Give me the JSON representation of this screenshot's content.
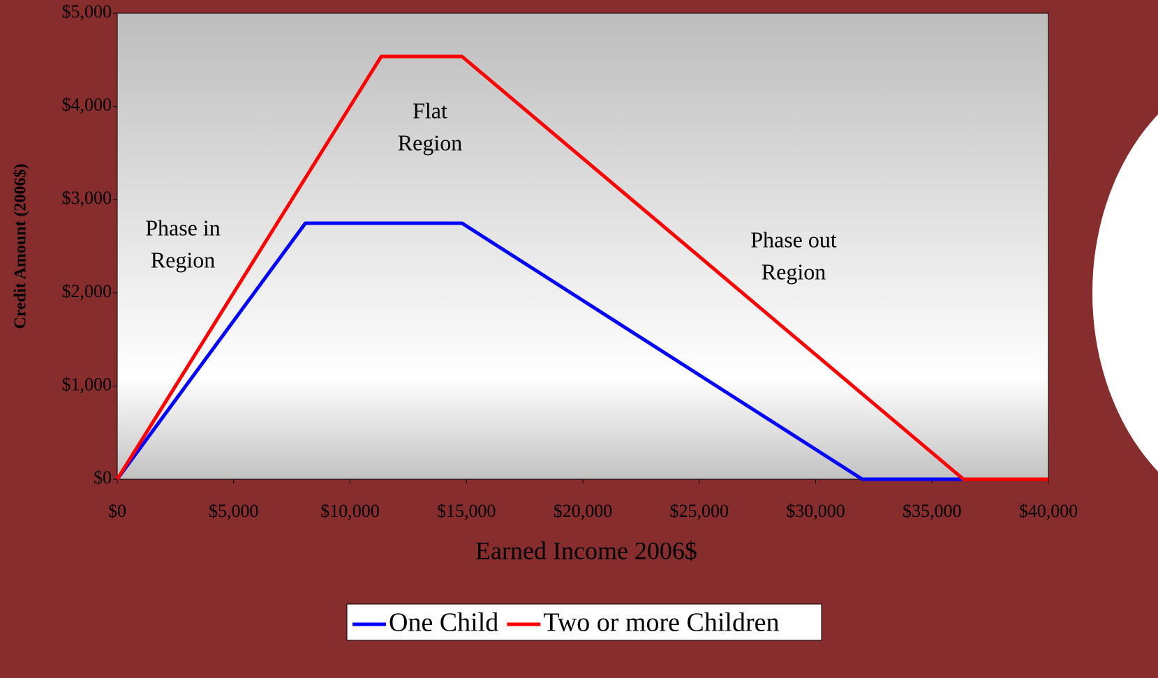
{
  "chart_data": {
    "type": "line",
    "x_label": "Earned Income 2006$",
    "y_label": "Credit Amount (2006$)",
    "series": [
      {
        "name": "One Child",
        "color": "#0000ff",
        "x": [
          0,
          8080,
          14810,
          32001,
          40000
        ],
        "values": [
          0,
          2747,
          2747,
          0,
          0
        ]
      },
      {
        "name": "Two or more Children",
        "color": "#ff0000",
        "x": [
          0,
          11340,
          14810,
          36348,
          40000
        ],
        "values": [
          0,
          4536,
          4536,
          0,
          0
        ]
      }
    ],
    "annotations": [
      [
        "Phase in",
        "Region"
      ],
      [
        "Flat",
        "Region"
      ],
      [
        "Phase out",
        "Region"
      ]
    ],
    "xlim": [
      0,
      40000
    ],
    "xticks": [
      {
        "value": 0,
        "label": "$0"
      },
      {
        "value": 5000,
        "label": "$5,000"
      },
      {
        "value": 10000,
        "label": "$10,000"
      },
      {
        "value": 15000,
        "label": "$15,000"
      },
      {
        "value": 20000,
        "label": "$20,000"
      },
      {
        "value": 25000,
        "label": "$25,000"
      },
      {
        "value": 30000,
        "label": "$30,000"
      },
      {
        "value": 35000,
        "label": "$35,000"
      },
      {
        "value": 40000,
        "label": "$40,000"
      }
    ],
    "ylim": [
      0,
      5000
    ],
    "yticks": [
      {
        "value": 0,
        "label": "$0"
      },
      {
        "value": 1000,
        "label": "$1,000"
      },
      {
        "value": 2000,
        "label": "$2,000"
      },
      {
        "value": 3000,
        "label": "$3,000"
      },
      {
        "value": 4000,
        "label": "$4,000"
      },
      {
        "value": 5000,
        "label": "$5,000"
      }
    ],
    "legend": "bottom"
  }
}
